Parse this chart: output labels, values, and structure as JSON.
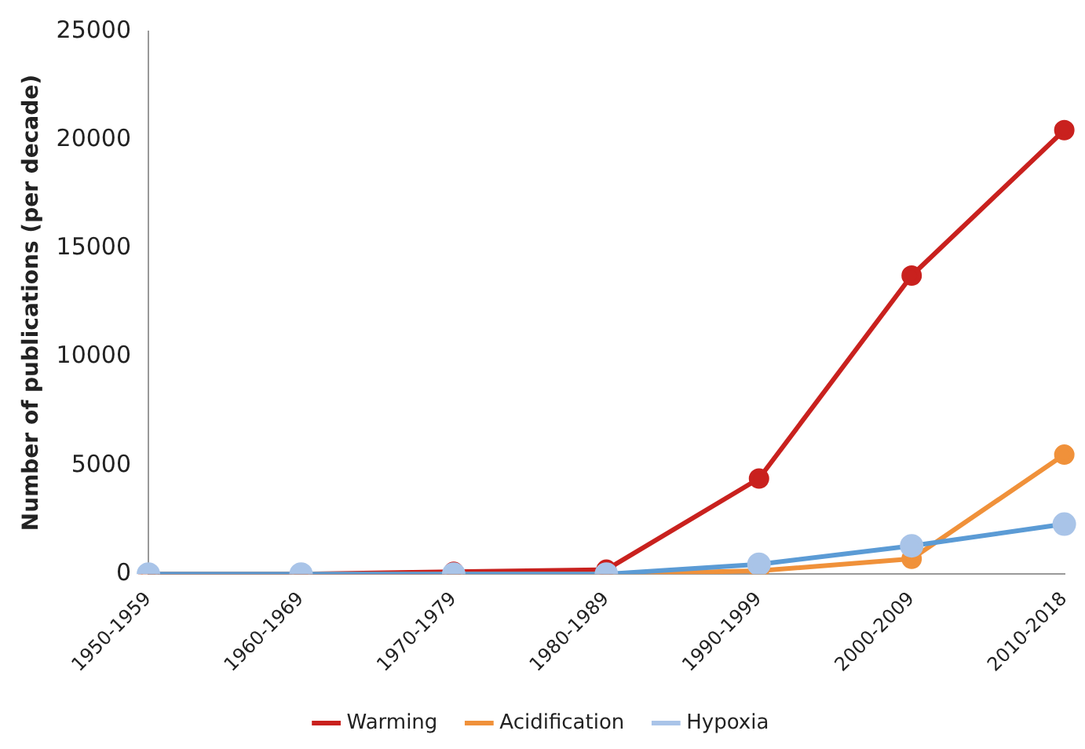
{
  "chart_data": {
    "type": "line",
    "ylabel": "Number of publications (per decade)",
    "categories": [
      "1950-1959",
      "1960-1969",
      "1970-1979",
      "1980-1989",
      "1990-1999",
      "2000-2009",
      "2010-2018"
    ],
    "series": [
      {
        "name": "Warming",
        "color": "#c9211e",
        "values": [
          0,
          0,
          100,
          200,
          4400,
          13750,
          20450
        ]
      },
      {
        "name": "Acidification",
        "color": "#f0913a",
        "values": [
          0,
          0,
          0,
          0,
          150,
          700,
          5500
        ]
      },
      {
        "name": "Hypoxia",
        "color": "#5b9bd5",
        "values": [
          0,
          0,
          0,
          0,
          450,
          1300,
          2300
        ]
      }
    ],
    "ylim": [
      0,
      25000
    ],
    "yticks": [
      0,
      5000,
      10000,
      15000,
      20000,
      25000
    ],
    "grid": false,
    "legend": "bottom",
    "marker": "circle",
    "line_style": "solid"
  }
}
